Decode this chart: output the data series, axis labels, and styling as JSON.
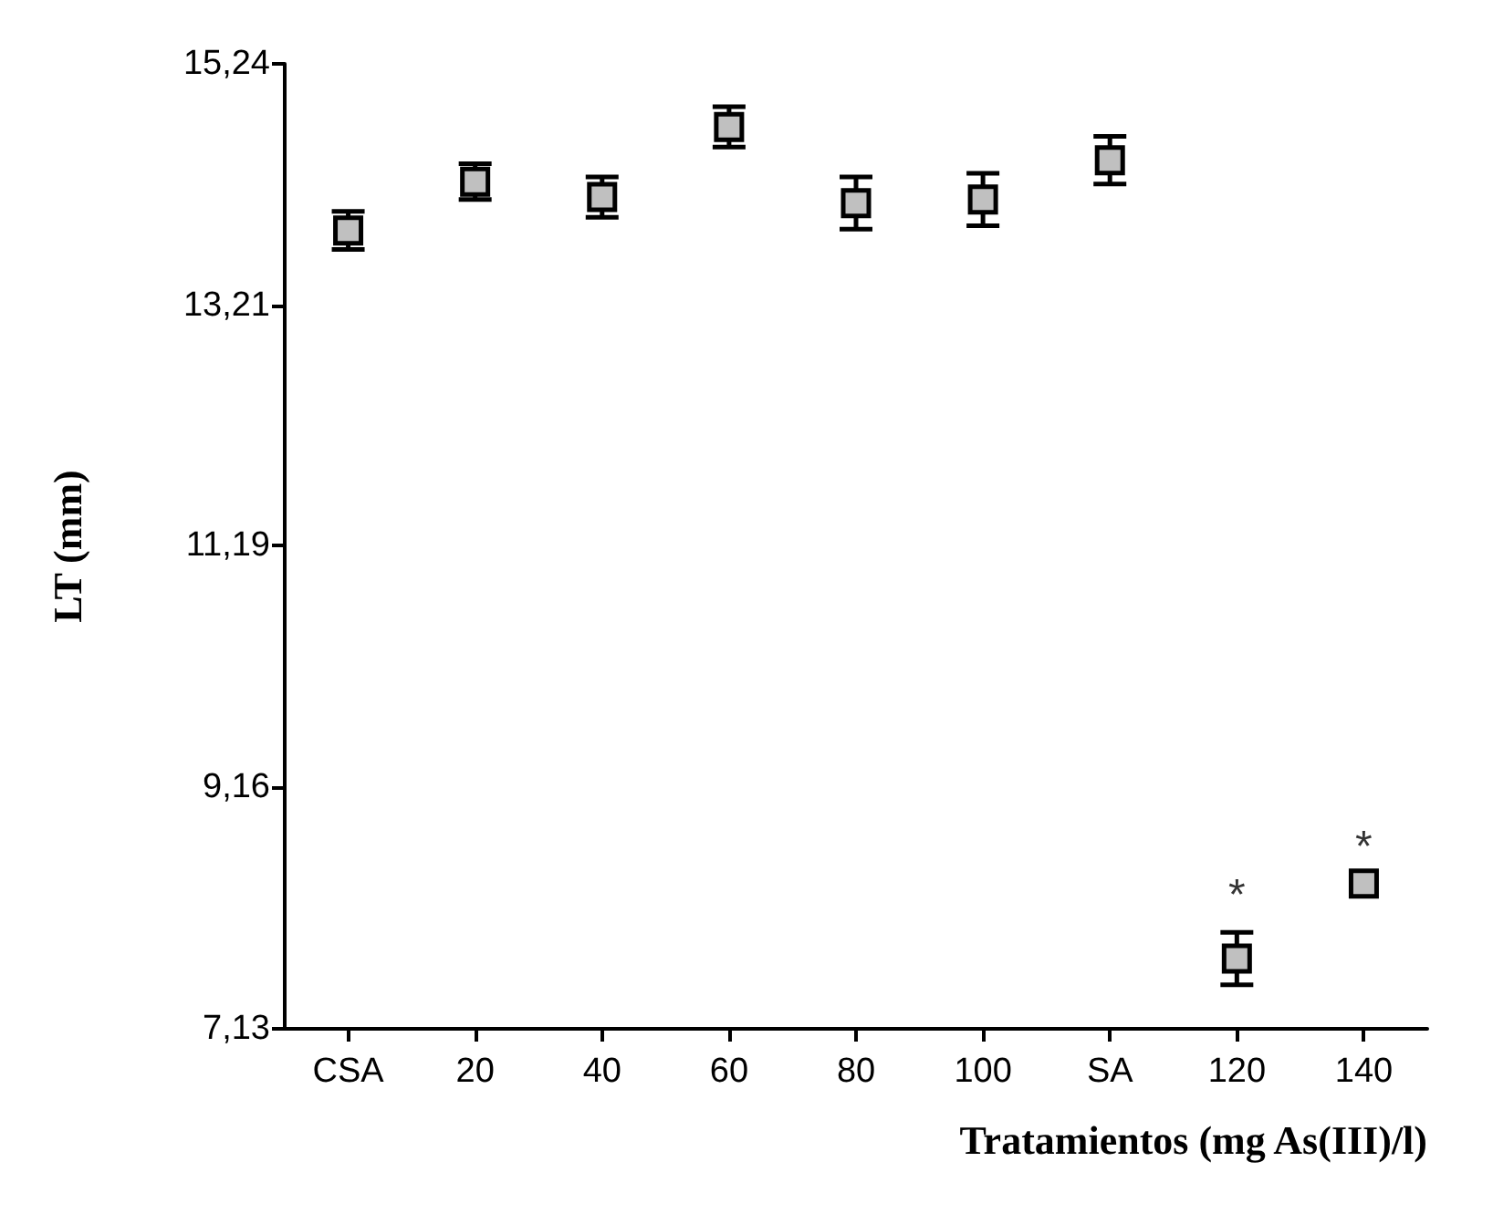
{
  "chart_data": {
    "type": "scatter",
    "xlabel": "Tratamientos (mg As(III)/l)",
    "ylabel": "LT (mm)",
    "categories": [
      "CSA",
      "20",
      "40",
      "60",
      "80",
      "100",
      "SA",
      "120",
      "140"
    ],
    "values": [
      13.84,
      14.25,
      14.12,
      14.71,
      14.07,
      14.1,
      14.43,
      7.72,
      8.35
    ],
    "errors": [
      0.16,
      0.15,
      0.17,
      0.17,
      0.22,
      0.22,
      0.2,
      0.22,
      null
    ],
    "color": "#c0c0c0",
    "marker": "square",
    "grid": false,
    "ylim": [
      7.13,
      15.24
    ],
    "yticks": [
      {
        "value": 7.13,
        "label": "7,13"
      },
      {
        "value": 9.16,
        "label": "9,16"
      },
      {
        "value": 11.19,
        "label": "11,19"
      },
      {
        "value": 13.21,
        "label": "13,21"
      },
      {
        "value": 15.24,
        "label": "15,24"
      }
    ],
    "annotations": [
      {
        "text": "*",
        "x": "120",
        "y": 7.72
      },
      {
        "text": "*",
        "x": "140",
        "y": 8.35
      }
    ]
  }
}
